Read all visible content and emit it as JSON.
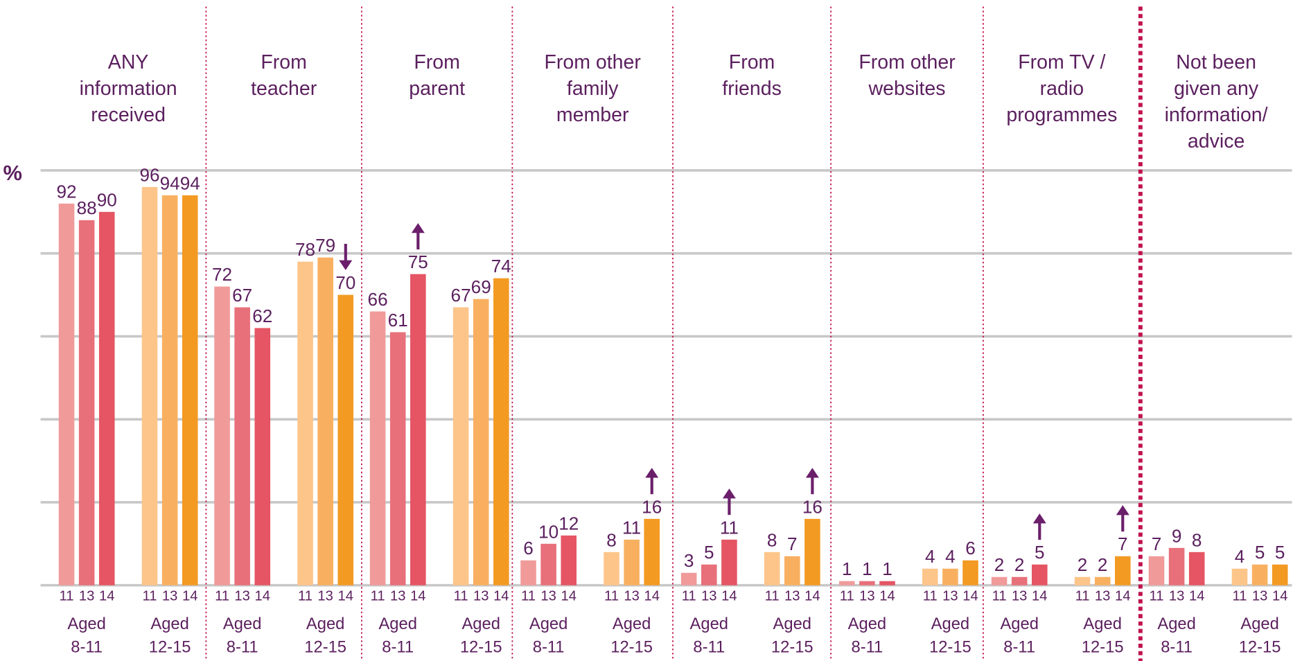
{
  "chart_data": {
    "type": "bar",
    "ylabel": "%",
    "ylim": [
      0,
      100
    ],
    "yticks": [
      0,
      20,
      40,
      60,
      80,
      100
    ],
    "grid": true,
    "years": [
      "11",
      "13",
      "14"
    ],
    "age_groups": [
      [
        "Aged",
        "8-11"
      ],
      [
        "Aged",
        "12-15"
      ]
    ],
    "colors": [
      [
        "#f09a9a",
        "#e8707a",
        "#e55563"
      ],
      [
        "#fdc58a",
        "#f8b060",
        "#f39a22"
      ]
    ],
    "arrow_color": "#6b1f6b",
    "groups": [
      {
        "title": [
          "ANY",
          "information",
          "received"
        ],
        "subgroups": [
          {
            "values": [
              92,
              88,
              90
            ],
            "arrows": [
              null,
              null,
              null
            ]
          },
          {
            "values": [
              96,
              94,
              94
            ],
            "arrows": [
              null,
              null,
              null
            ]
          }
        ]
      },
      {
        "title": [
          "From",
          "teacher"
        ],
        "subgroups": [
          {
            "values": [
              72,
              67,
              62
            ],
            "arrows": [
              null,
              null,
              null
            ]
          },
          {
            "values": [
              78,
              79,
              70
            ],
            "arrows": [
              null,
              null,
              "down"
            ]
          }
        ]
      },
      {
        "title": [
          "From",
          "parent"
        ],
        "subgroups": [
          {
            "values": [
              66,
              61,
              75
            ],
            "arrows": [
              null,
              null,
              "up"
            ]
          },
          {
            "values": [
              67,
              69,
              74
            ],
            "arrows": [
              null,
              null,
              null
            ]
          }
        ]
      },
      {
        "title": [
          "From other",
          "family",
          "member"
        ],
        "subgroups": [
          {
            "values": [
              6,
              10,
              12
            ],
            "arrows": [
              null,
              null,
              null
            ]
          },
          {
            "values": [
              8,
              11,
              16
            ],
            "arrows": [
              null,
              null,
              "up"
            ]
          }
        ]
      },
      {
        "title": [
          "From",
          "friends"
        ],
        "subgroups": [
          {
            "values": [
              3,
              5,
              11
            ],
            "arrows": [
              null,
              null,
              "up"
            ]
          },
          {
            "values": [
              8,
              7,
              16
            ],
            "arrows": [
              null,
              null,
              "up"
            ]
          }
        ]
      },
      {
        "title": [
          "From other",
          "websites"
        ],
        "subgroups": [
          {
            "values": [
              1,
              1,
              1
            ],
            "arrows": [
              null,
              null,
              null
            ]
          },
          {
            "values": [
              4,
              4,
              6
            ],
            "arrows": [
              null,
              null,
              null
            ]
          }
        ]
      },
      {
        "title": [
          "From TV /",
          "radio",
          "programmes"
        ],
        "subgroups": [
          {
            "values": [
              2,
              2,
              5
            ],
            "arrows": [
              null,
              null,
              "up"
            ]
          },
          {
            "values": [
              2,
              2,
              7
            ],
            "arrows": [
              null,
              null,
              "up"
            ]
          }
        ]
      },
      {
        "title": [
          "Not been",
          "given any",
          "information/",
          "advice"
        ],
        "subgroups": [
          {
            "values": [
              7,
              9,
              8
            ],
            "arrows": [
              null,
              null,
              null
            ]
          },
          {
            "values": [
              4,
              5,
              5
            ],
            "arrows": [
              null,
              null,
              null
            ]
          }
        ]
      }
    ]
  }
}
